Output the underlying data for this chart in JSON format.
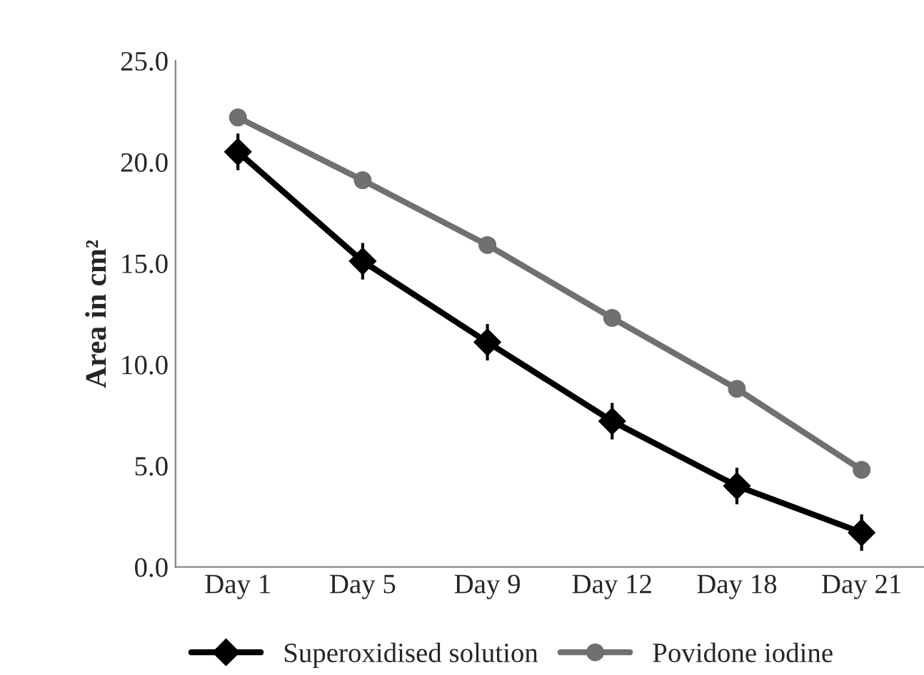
{
  "chart_data": {
    "type": "line",
    "ylabel": "Area in cm²",
    "categories": [
      "Day 1",
      "Day 5",
      "Day 9",
      "Day 12",
      "Day 18",
      "Day 21"
    ],
    "series": [
      {
        "name": "Superoxidised solution",
        "color": "#000000",
        "marker": "diamond",
        "values": [
          20.5,
          15.1,
          11.1,
          7.2,
          4.0,
          1.7
        ],
        "errors": [
          0.9,
          0.9,
          0.9,
          0.9,
          0.9,
          0.9
        ]
      },
      {
        "name": "Povidone iodine",
        "color": "#707070",
        "marker": "circle",
        "values": [
          22.2,
          19.1,
          15.9,
          12.3,
          8.8,
          4.8
        ]
      }
    ],
    "ylim": [
      0,
      25
    ],
    "yticks": [
      {
        "value": 0,
        "label": "0.0"
      },
      {
        "value": 5,
        "label": "5.0"
      },
      {
        "value": 10,
        "label": "10.0"
      },
      {
        "value": 15,
        "label": "15.0"
      },
      {
        "value": 20,
        "label": "20.0"
      },
      {
        "value": 25,
        "label": "25.0"
      }
    ],
    "grid": false,
    "legend": "bottom"
  }
}
